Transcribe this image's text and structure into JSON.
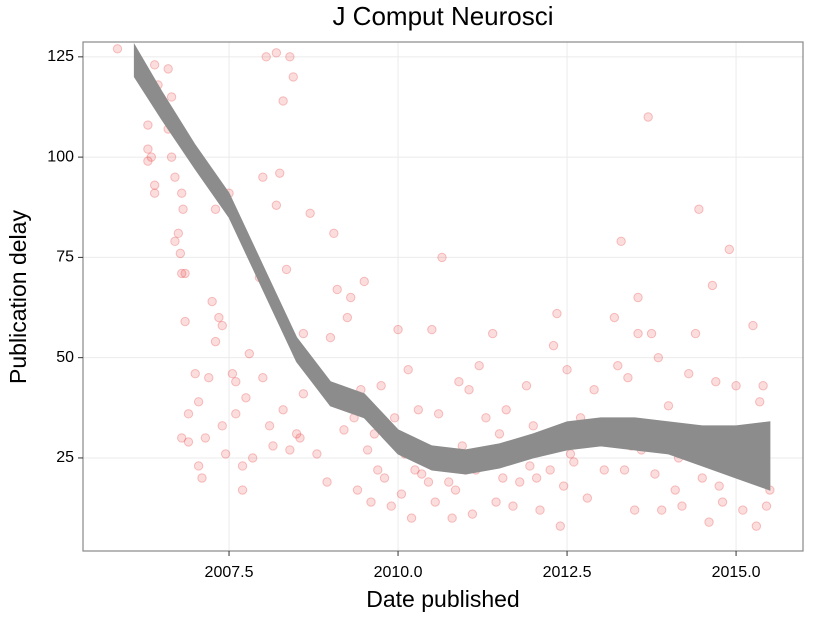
{
  "chart_data": {
    "type": "scatter",
    "title": "J Comput Neurosci",
    "x_label": "Date published",
    "y_label": "Publication delay",
    "xlim": [
      2005.34,
      2015.99
    ],
    "ylim": [
      1.8,
      128.7
    ],
    "xticks": [
      2007.5,
      {
        "value": 2010,
        "label": "2010.0"
      },
      2012.5,
      {
        "value": 2015,
        "label": "2015.0"
      }
    ],
    "yticks": [
      25,
      50,
      75,
      100,
      125
    ],
    "grid": true,
    "color": "#e41a1c",
    "x": [
      2005.85,
      2006.3,
      2006.3,
      2006.3,
      2006.35,
      2006.4,
      2006.45,
      2006.4,
      2006.4,
      2006.6,
      2006.65,
      2006.6,
      2006.65,
      2006.7,
      2006.75,
      2006.78,
      2006.8,
      2006.82,
      2006.8,
      2006.85,
      2006.7,
      2006.85,
      2006.8,
      2006.9,
      2006.9,
      2007.0,
      2007.05,
      2007.1,
      2007.05,
      2007.2,
      2007.25,
      2007.3,
      2007.3,
      2007.35,
      2007.4,
      2007.4,
      2007.45,
      2007.5,
      2007.55,
      2007.6,
      2007.6,
      2007.7,
      2007.7,
      2007.8,
      2007.85,
      2007.9,
      2007.95,
      2008.0,
      2008.0,
      2008.05,
      2008.1,
      2008.2,
      2008.2,
      2008.25,
      2008.3,
      2008.35,
      2008.4,
      2008.45,
      2008.3,
      2008.4,
      2008.5,
      2008.6,
      2008.6,
      2008.7,
      2008.8,
      2008.9,
      2008.95,
      2009.0,
      2009.05,
      2009.1,
      2009.15,
      2009.2,
      2009.25,
      2009.3,
      2009.4,
      2009.45,
      2009.5,
      2009.55,
      2009.6,
      2009.7,
      2009.75,
      2009.8,
      2009.9,
      2009.95,
      2010.0,
      2010.05,
      2010.1,
      2010.15,
      2010.2,
      2010.3,
      2010.35,
      2010.45,
      2010.5,
      2010.55,
      2010.6,
      2010.65,
      2010.7,
      2010.8,
      2010.85,
      2010.9,
      2010.95,
      2011.0,
      2011.05,
      2011.1,
      2011.2,
      2011.25,
      2011.3,
      2011.4,
      2011.45,
      2011.5,
      2011.6,
      2011.7,
      2011.8,
      2011.9,
      2011.95,
      2012.0,
      2012.1,
      2012.2,
      2012.3,
      2012.35,
      2012.4,
      2012.45,
      2012.5,
      2012.6,
      2012.7,
      2012.8,
      2012.9,
      2013.0,
      2013.1,
      2013.2,
      2013.25,
      2013.3,
      2013.35,
      2013.4,
      2013.5,
      2013.55,
      2013.55,
      2013.6,
      2013.7,
      2013.75,
      2013.8,
      2013.85,
      2013.9,
      2014.0,
      2014.1,
      2014.2,
      2014.3,
      2014.4,
      2014.45,
      2014.5,
      2014.6,
      2014.65,
      2014.7,
      2014.75,
      2014.8,
      2014.9,
      2014.95,
      2015.0,
      2015.05,
      2015.1,
      2015.2,
      2015.25,
      2015.3,
      2015.35,
      2015.4,
      2015.5,
      2015.45,
      2010.25,
      2010.4,
      2010.75,
      2011.15,
      2011.35,
      2011.55,
      2011.75,
      2012.05,
      2012.25,
      2012.55,
      2012.75,
      2013.05,
      2013.45,
      2014.15,
      2014.55,
      2015.15,
      2009.35,
      2009.65,
      2008.55,
      2008.15,
      2007.75,
      2007.15
    ],
    "values": [
      127,
      108,
      102,
      99,
      100,
      123,
      118,
      93,
      91,
      122,
      115,
      107,
      100,
      95,
      81,
      76,
      91,
      87,
      71,
      71,
      79,
      59,
      30,
      36,
      29,
      46,
      23,
      20,
      39,
      45,
      64,
      87,
      54,
      60,
      58,
      33,
      26,
      91,
      46,
      44,
      36,
      17,
      23,
      51,
      25,
      74,
      70,
      95,
      45,
      125,
      33,
      88,
      126,
      96,
      114,
      72,
      125,
      120,
      37,
      27,
      31,
      56,
      41,
      86,
      26,
      44,
      19,
      55,
      81,
      67,
      42,
      32,
      60,
      65,
      17,
      42,
      69,
      27,
      14,
      22,
      43,
      20,
      13,
      35,
      57,
      16,
      26,
      47,
      10,
      37,
      21,
      19,
      57,
      14,
      36,
      75,
      24,
      10,
      17,
      44,
      28,
      22,
      42,
      11,
      48,
      25,
      35,
      56,
      14,
      31,
      37,
      13,
      19,
      43,
      23,
      33,
      12,
      27,
      53,
      61,
      8,
      18,
      47,
      24,
      35,
      15,
      42,
      33,
      29,
      60,
      48,
      79,
      22,
      45,
      12,
      65,
      56,
      27,
      110,
      56,
      21,
      50,
      12,
      38,
      17,
      13,
      46,
      56,
      87,
      20,
      9,
      68,
      44,
      18,
      14,
      77,
      29,
      43,
      22,
      12,
      32,
      58,
      8,
      39,
      43,
      17,
      13,
      22,
      24,
      19,
      22,
      26,
      20,
      28,
      20,
      22,
      26,
      30,
      22,
      28,
      25,
      26,
      25,
      35,
      31,
      30,
      28,
      40,
      30
    ],
    "smooth": {
      "color": "#8c8c8c",
      "x": [
        2006.1,
        2006.5,
        2007.0,
        2007.5,
        2008.0,
        2008.5,
        2009.0,
        2009.5,
        2010.0,
        2010.5,
        2011.0,
        2011.5,
        2012.0,
        2012.5,
        2013.0,
        2013.5,
        2014.0,
        2014.5,
        2015.0,
        2015.5
      ],
      "lower": [
        120,
        109.5,
        97,
        85,
        67,
        49,
        38,
        35,
        26,
        22,
        21,
        22.5,
        25,
        27,
        28,
        27,
        26,
        23,
        20,
        17
      ],
      "upper": [
        128,
        116.5,
        103,
        91,
        73,
        55,
        44,
        41,
        32,
        28,
        27,
        28.5,
        31,
        34,
        35,
        35,
        34,
        33,
        33,
        34
      ]
    }
  }
}
